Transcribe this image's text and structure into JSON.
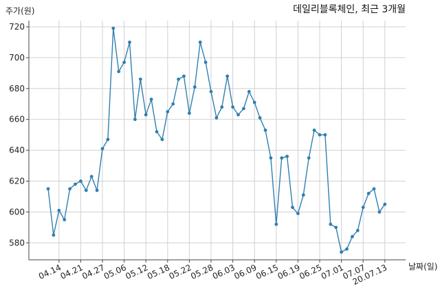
{
  "chart_data": {
    "type": "line",
    "title": "데일리블록체인, 최근 3개월",
    "ylabel": "주가(원)",
    "xlabel": "날짜(일)",
    "ylim": [
      569,
      724
    ],
    "yticks": [
      580,
      600,
      620,
      640,
      660,
      680,
      700,
      720
    ],
    "xtick_labels": [
      "04.14",
      "04.21",
      "04.27",
      "05.06",
      "05.12",
      "05.18",
      "05.22",
      "05.28",
      "06.03",
      "06.09",
      "06.15",
      "06.19",
      "06.25",
      "07.01",
      "07.07",
      "20.07.13"
    ],
    "xtick_indices": [
      2,
      6,
      10,
      14,
      18,
      22,
      26,
      30,
      34,
      38,
      42,
      46,
      50,
      54,
      58,
      62
    ],
    "grid": true,
    "color": "#2f7fb0",
    "series": [
      {
        "values": [
          615,
          585,
          601,
          595,
          615,
          618,
          620,
          614,
          623,
          614,
          641,
          647,
          719,
          691,
          697,
          710,
          660,
          686,
          663,
          673,
          652,
          647,
          665,
          670,
          686,
          688,
          664,
          681,
          710,
          697,
          678,
          661,
          668,
          688,
          668,
          663,
          667,
          678,
          671,
          661,
          653,
          635,
          592,
          635,
          636,
          603,
          599,
          611,
          635,
          653,
          650,
          650,
          592,
          590,
          574,
          576,
          584,
          588,
          603,
          612,
          615,
          600,
          605
        ]
      }
    ]
  }
}
